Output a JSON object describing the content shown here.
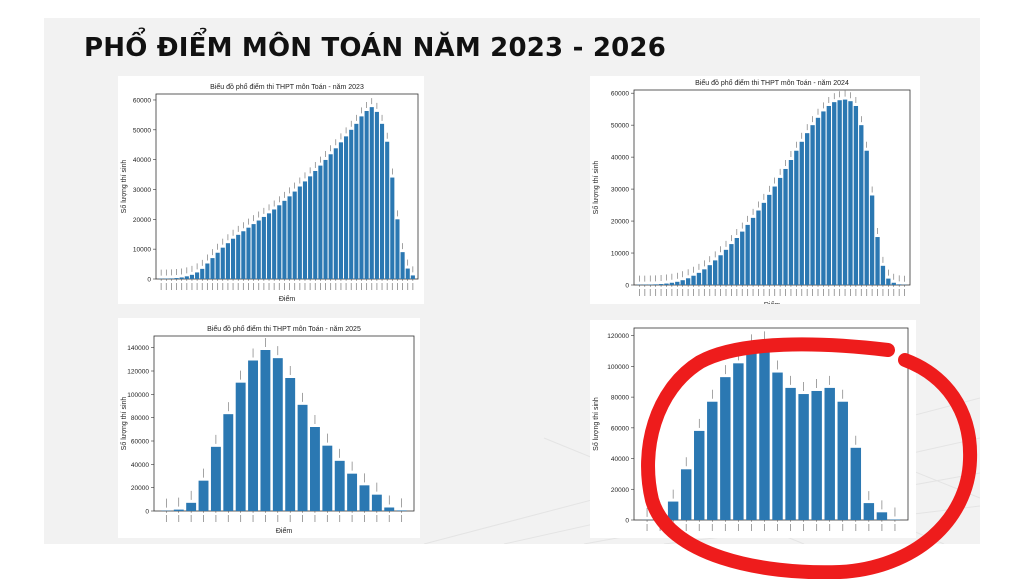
{
  "slide": {
    "title": "PHỔ ĐIỂM MÔN TOÁN NĂM 2023 - 2026"
  },
  "colors": {
    "bar": "#2b78b2",
    "annotation": "#ee1c1c"
  },
  "chart_data": [
    {
      "type": "bar",
      "title": "Biểu đồ phổ điểm thi THPT môn Toán - năm 2023",
      "xlabel": "Điểm",
      "ylabel": "Số lượng thí sinh",
      "ylim": [
        0,
        62000
      ],
      "yticks": [
        0,
        10000,
        20000,
        30000,
        40000,
        50000,
        60000
      ],
      "categories_count": 50,
      "values": [
        120,
        150,
        200,
        320,
        520,
        900,
        1400,
        2200,
        3400,
        5200,
        7000,
        8800,
        10500,
        12000,
        13500,
        14800,
        16000,
        17200,
        18400,
        19600,
        20800,
        22000,
        23300,
        24700,
        26200,
        27700,
        29300,
        31000,
        32700,
        34400,
        36200,
        38000,
        39900,
        41800,
        43800,
        45800,
        47800,
        50000,
        52000,
        54500,
        56300,
        57600,
        56000,
        52000,
        46000,
        34000,
        20000,
        9000,
        3500,
        1200
      ]
    },
    {
      "type": "bar",
      "title": "Biểu đồ phổ điểm thi THPT môn Toán - năm 2024",
      "xlabel": "Điểm",
      "ylabel": "Số lượng thí sinh",
      "ylim": [
        0,
        61000
      ],
      "yticks": [
        0,
        10000,
        20000,
        30000,
        40000,
        50000,
        60000
      ],
      "categories_count": 50,
      "values": [
        100,
        120,
        150,
        200,
        300,
        450,
        700,
        1000,
        1500,
        2100,
        2900,
        3800,
        4900,
        6200,
        7700,
        9300,
        11000,
        12800,
        14700,
        16700,
        18800,
        21000,
        23300,
        25700,
        28200,
        30800,
        33500,
        36300,
        39100,
        42000,
        44800,
        47500,
        50000,
        52300,
        54300,
        56000,
        57200,
        57800,
        58000,
        57500,
        56000,
        50000,
        42000,
        28000,
        15000,
        6000,
        2000,
        700,
        200,
        80
      ]
    },
    {
      "type": "bar",
      "title": "Biểu đồ phổ điểm thi THPT môn Toán - năm 2025",
      "xlabel": "Điểm",
      "ylabel": "Số lượng thí sinh",
      "ylim": [
        0,
        150000
      ],
      "yticks": [
        0,
        20000,
        40000,
        60000,
        80000,
        100000,
        120000,
        140000
      ],
      "categories_count": 20,
      "values": [
        300,
        1200,
        7000,
        26000,
        55000,
        83000,
        110000,
        129000,
        138000,
        131000,
        114000,
        91000,
        72000,
        56000,
        43000,
        32000,
        22000,
        14000,
        3000,
        500
      ]
    },
    {
      "type": "bar",
      "title": "",
      "xlabel": "",
      "ylabel": "Số lượng thí sinh",
      "ylim": [
        0,
        125000
      ],
      "yticks": [
        0,
        20000,
        40000,
        60000,
        80000,
        100000,
        120000
      ],
      "categories_count": 20,
      "values": [
        100,
        3500,
        12000,
        33000,
        58000,
        77000,
        93000,
        102000,
        113000,
        115000,
        96000,
        86000,
        82000,
        84000,
        86000,
        77000,
        47000,
        11000,
        5000,
        300
      ]
    }
  ]
}
